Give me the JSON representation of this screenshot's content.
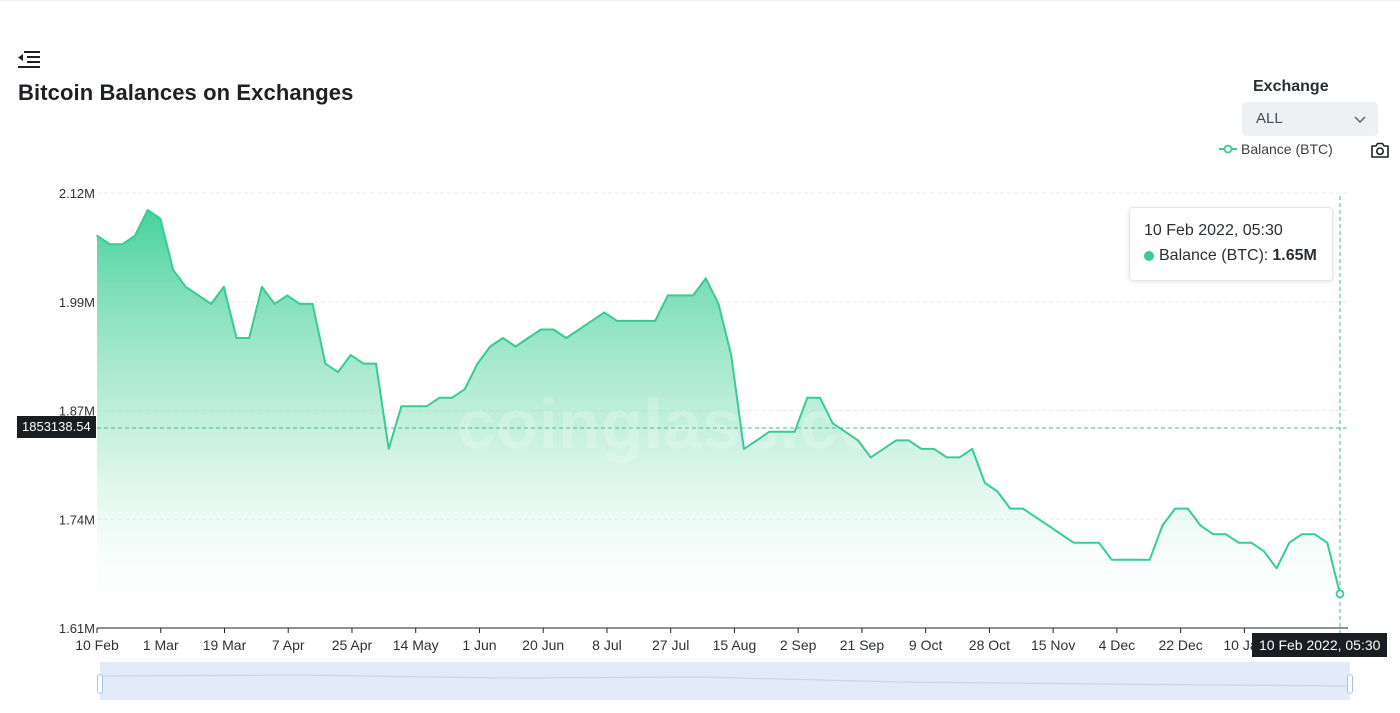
{
  "title": "Bitcoin Balances on Exchanges",
  "exchange": {
    "label": "Exchange",
    "selected": "ALL"
  },
  "legend": {
    "label": "Balance (BTC)"
  },
  "tooltip": {
    "time": "10 Feb 2022, 05:30",
    "series": "Balance (BTC):",
    "value": "1.65M"
  },
  "pointer": {
    "y_value": "1853138.54",
    "x_value": "10 Feb 2022, 05:30"
  },
  "watermark": "coinglass.com",
  "colors": {
    "line": "#36cc94",
    "area_top": "#3ecf98",
    "tooltip_dot": "#36cc94"
  },
  "icons": {
    "menu": "menu-collapse-icon",
    "dropdown": "chevron-down-icon",
    "legend": "line-marker-icon",
    "camera": "camera-icon"
  },
  "chart_data": {
    "type": "area",
    "title": "Bitcoin Balances on Exchanges",
    "xlabel": "",
    "ylabel": "",
    "ylim": [
      1.61,
      2.12
    ],
    "y_ticks": [
      "2.12M",
      "1.99M",
      "1.87M",
      "1.74M",
      "1.61M"
    ],
    "x_ticks": [
      "10 Feb",
      "1 Mar",
      "19 Mar",
      "7 Apr",
      "25 Apr",
      "14 May",
      "1 Jun",
      "20 Jun",
      "8 Jul",
      "27 Jul",
      "15 Aug",
      "2 Sep",
      "21 Sep",
      "9 Oct",
      "28 Oct",
      "15 Nov",
      "4 Dec",
      "22 Dec",
      "10 Jan"
    ],
    "grid": true,
    "series": [
      {
        "name": "Balance (BTC)",
        "unit": "M BTC",
        "x": [
          "10 Feb",
          "15 Feb",
          "19 Feb",
          "23 Feb",
          "26 Feb",
          "28 Feb",
          "1 Mar",
          "4 Mar",
          "5 Mar",
          "8 Mar",
          "12 Mar",
          "16 Mar",
          "19 Mar",
          "21 Mar",
          "23 Mar",
          "25 Mar",
          "29 Mar",
          "2 Apr",
          "5 Apr",
          "6 Apr",
          "9 Apr",
          "12 Apr",
          "14 Apr",
          "16 Apr",
          "20 Apr",
          "24 Apr",
          "25 Apr",
          "28 Apr",
          "3 May",
          "8 May",
          "14 May",
          "17 May",
          "20 May",
          "24 May",
          "28 May",
          "1 Jun",
          "6 Jun",
          "11 Jun",
          "16 Jun",
          "20 Jun",
          "24 Jun",
          "29 Jun",
          "3 Jul",
          "8 Jul",
          "12 Jul",
          "15 Jul",
          "19 Jul",
          "21 Jul",
          "22 Jul",
          "23 Jul",
          "24 Jul",
          "27 Jul",
          "2 Aug",
          "9 Aug",
          "15 Aug",
          "19 Aug",
          "23 Aug",
          "27 Aug",
          "31 Aug",
          "2 Sep",
          "6 Sep",
          "11 Sep",
          "16 Sep",
          "21 Sep",
          "26 Sep",
          "1 Oct",
          "6 Oct",
          "9 Oct",
          "14 Oct",
          "19 Oct",
          "22 Oct",
          "24 Oct",
          "28 Oct",
          "31 Oct",
          "6 Nov",
          "11 Nov",
          "15 Nov",
          "20 Nov",
          "25 Nov",
          "29 Nov",
          "4 Dec",
          "9 Dec",
          "14 Dec",
          "18 Dec",
          "22 Dec",
          "24 Dec",
          "27 Dec",
          "31 Dec",
          "5 Jan",
          "10 Jan",
          "15 Jan",
          "20 Jan",
          "23 Jan",
          "26 Jan",
          "30 Jan",
          "2 Feb",
          "4 Feb",
          "7 Feb",
          "10 Feb"
        ],
        "values": [
          2.07,
          2.06,
          2.06,
          2.07,
          2.1,
          2.09,
          2.03,
          2.01,
          2.0,
          1.99,
          2.01,
          1.95,
          1.95,
          2.01,
          1.99,
          2.0,
          1.99,
          1.99,
          1.92,
          1.91,
          1.93,
          1.92,
          1.92,
          1.82,
          1.87,
          1.87,
          1.87,
          1.88,
          1.88,
          1.89,
          1.92,
          1.94,
          1.95,
          1.94,
          1.95,
          1.96,
          1.96,
          1.95,
          1.96,
          1.97,
          1.98,
          1.97,
          1.97,
          1.97,
          1.97,
          2.0,
          2.0,
          2.0,
          2.02,
          1.99,
          1.93,
          1.82,
          1.83,
          1.84,
          1.84,
          1.84,
          1.88,
          1.88,
          1.85,
          1.84,
          1.83,
          1.81,
          1.82,
          1.83,
          1.83,
          1.82,
          1.82,
          1.81,
          1.81,
          1.82,
          1.78,
          1.77,
          1.75,
          1.75,
          1.74,
          1.73,
          1.72,
          1.71,
          1.71,
          1.71,
          1.69,
          1.69,
          1.69,
          1.69,
          1.73,
          1.75,
          1.75,
          1.73,
          1.72,
          1.72,
          1.71,
          1.71,
          1.7,
          1.68,
          1.71,
          1.72,
          1.72,
          1.71,
          1.65
        ]
      }
    ]
  }
}
